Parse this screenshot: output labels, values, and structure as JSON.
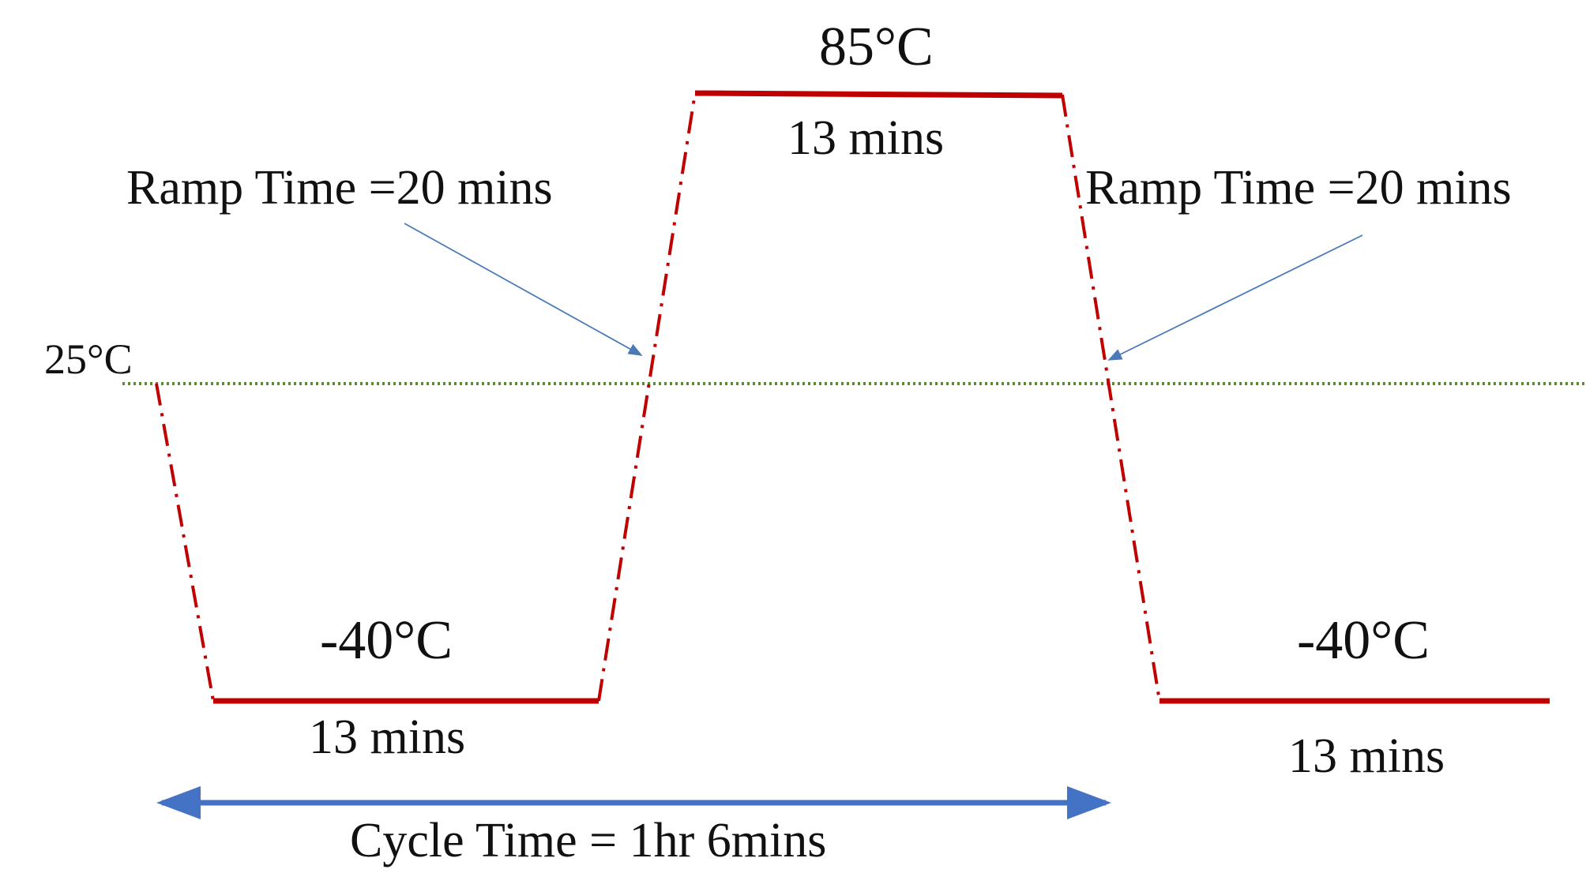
{
  "diagram": {
    "labels": {
      "ambient_temp": "25°C",
      "hot_temp": "85°C",
      "cold_temp_first": "-40°C",
      "cold_temp_second": "-40°C",
      "hot_dwell": "13 mins",
      "cold_dwell_first": "13 mins",
      "cold_dwell_second": "13 mins",
      "ramp_left": "Ramp Time =20 mins",
      "ramp_right": "Ramp Time =20 mins",
      "cycle_time": "Cycle Time = 1hr 6mins"
    },
    "colors": {
      "dwell_line": "#c00000",
      "ramp_line": "#c00000",
      "ambient_line": "#5a8a32",
      "pointer_arrow": "#4a7ab8",
      "cycle_arrow": "#4472c4",
      "text": "#111111"
    }
  }
}
